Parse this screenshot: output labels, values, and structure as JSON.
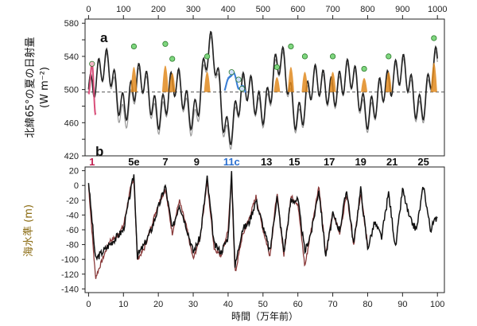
{
  "chart_data": [
    {
      "panel": "a",
      "type": "line",
      "top_axis_ticks": [
        "0",
        "100",
        "200",
        "300",
        "400",
        "500",
        "600",
        "700",
        "800",
        "900",
        "1000"
      ],
      "top_axis_range": [
        0,
        1000
      ],
      "ylabel": "北緯65°の夏の日射量",
      "ylabel_unit": "(W m⁻²)",
      "ylim": [
        420,
        585
      ],
      "y_ticks": [
        "420",
        "440",
        "460",
        "480",
        "500",
        "520",
        "540",
        "560",
        "580"
      ],
      "reference_line": 497,
      "series": [
        {
          "color": "#222222",
          "x": [
            0,
            5,
            10,
            15,
            20,
            25,
            30,
            35,
            40,
            45,
            50,
            55,
            60,
            65,
            70,
            75,
            80,
            85,
            90,
            95,
            100
          ],
          "values": [
            500,
            531,
            478,
            515,
            470,
            510,
            468,
            552,
            448,
            505,
            476,
            537,
            466,
            512,
            497,
            520,
            470,
            504,
            525,
            476,
            535
          ]
        },
        {
          "color": "#9a9a9a",
          "x": [
            0,
            5,
            10,
            15,
            20,
            25,
            30,
            35,
            40,
            45,
            50,
            55,
            60,
            65,
            70,
            75,
            80,
            85,
            90,
            95,
            100
          ],
          "values": [
            502,
            528,
            466,
            512,
            462,
            508,
            458,
            548,
            440,
            503,
            470,
            533,
            460,
            510,
            492,
            517,
            464,
            502,
            522,
            470,
            531
          ]
        }
      ],
      "highlight_colors": {
        "mis1": "#d94f7a",
        "mis11c": "#3b7fd6",
        "peaks": "#e08a1e",
        "markers": "#7fd67f"
      },
      "peak_markers_x": [
        1,
        13,
        22,
        24,
        34,
        41,
        43,
        44,
        54,
        58,
        62,
        70,
        79,
        86,
        99
      ],
      "peak_markers_y": [
        531,
        552,
        555,
        537,
        540,
        521,
        512,
        501,
        527,
        552,
        540,
        540,
        525,
        540,
        562
      ]
    },
    {
      "panel": "b",
      "type": "line",
      "stage_labels": [
        {
          "label": "1",
          "x": 1,
          "color": "#c02050"
        },
        {
          "label": "5e",
          "x": 13,
          "color": "#111111"
        },
        {
          "label": "7",
          "x": 22,
          "color": "#111111"
        },
        {
          "label": "9",
          "x": 31,
          "color": "#111111"
        },
        {
          "label": "11c",
          "x": 41,
          "color": "#2a6fd0"
        },
        {
          "label": "13",
          "x": 51,
          "color": "#111111"
        },
        {
          "label": "15",
          "x": 59,
          "color": "#111111"
        },
        {
          "label": "17",
          "x": 69,
          "color": "#111111"
        },
        {
          "label": "19",
          "x": 78,
          "color": "#111111"
        },
        {
          "label": "21",
          "x": 87,
          "color": "#111111"
        },
        {
          "label": "25",
          "x": 96,
          "color": "#111111"
        }
      ],
      "ylabel": "海水準 (m)",
      "ylim": [
        -145,
        25
      ],
      "y_ticks": [
        "20",
        "0",
        "-20",
        "-40",
        "-60",
        "-80",
        "-100",
        "-120",
        "-140"
      ],
      "xlabel": "時間（万年前）",
      "xlim": [
        -1,
        102
      ],
      "x_ticks": [
        "0",
        "10",
        "20",
        "30",
        "40",
        "50",
        "60",
        "70",
        "80",
        "90",
        "100"
      ],
      "series": [
        {
          "color": "#111111",
          "x": [
            0,
            2,
            4,
            6,
            8,
            10,
            12,
            13,
            14,
            16,
            18,
            20,
            22,
            24,
            26,
            28,
            30,
            32,
            34,
            36,
            38,
            40,
            41,
            42,
            44,
            46,
            48,
            50,
            52,
            54,
            56,
            58,
            60,
            62,
            64,
            66,
            68,
            70,
            72,
            74,
            76,
            78,
            80,
            82,
            84,
            86,
            88,
            90,
            92,
            94,
            96,
            98,
            100
          ],
          "values": [
            5,
            -100,
            -90,
            -80,
            -70,
            -60,
            -10,
            15,
            -95,
            -80,
            -60,
            -30,
            0,
            -60,
            -25,
            -55,
            -90,
            -70,
            10,
            -80,
            -90,
            -70,
            15,
            -110,
            -60,
            -50,
            -20,
            -55,
            -90,
            -15,
            -90,
            -20,
            -20,
            -90,
            -60,
            -5,
            -95,
            -40,
            -60,
            -5,
            -80,
            -5,
            -85,
            -50,
            -70,
            -10,
            -85,
            -5,
            -45,
            -60,
            0,
            -60,
            -40
          ]
        },
        {
          "color": "#8a3b3b",
          "x": [
            0,
            2,
            4,
            6,
            8,
            10,
            12,
            13,
            14,
            16,
            18,
            20,
            22,
            24,
            26,
            28,
            30,
            32,
            34,
            36,
            38,
            40,
            41,
            42,
            44,
            46,
            48,
            50,
            52,
            54,
            56,
            58,
            60,
            62,
            64,
            66,
            68,
            70,
            72,
            74,
            76,
            78,
            80
          ],
          "values": [
            0,
            -125,
            -100,
            -75,
            -70,
            -55,
            -5,
            8,
            -100,
            -85,
            -55,
            -25,
            -5,
            -65,
            -20,
            -55,
            -100,
            -70,
            5,
            -85,
            -95,
            -60,
            10,
            -120,
            -70,
            -45,
            -15,
            -60,
            -95,
            -10,
            -95,
            -15,
            -25,
            -110,
            -55,
            0,
            -95,
            -35,
            -65,
            -10,
            -80,
            -10,
            -80
          ]
        }
      ]
    }
  ]
}
